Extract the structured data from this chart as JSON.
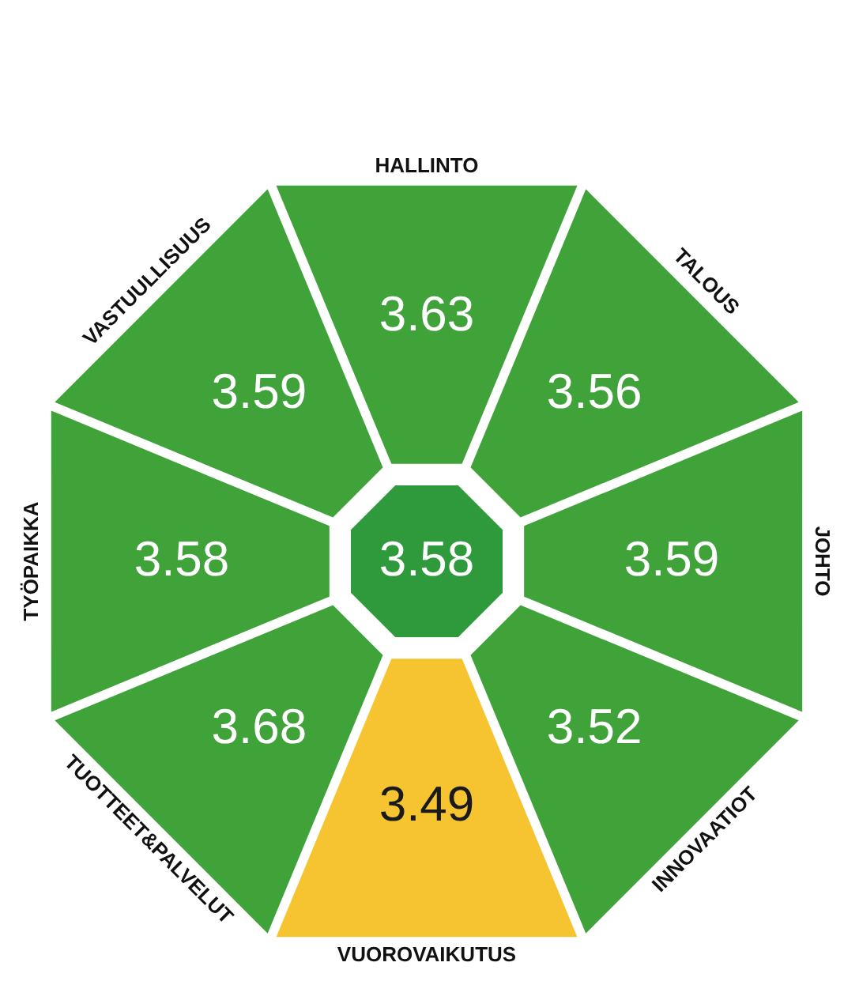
{
  "chart_data": {
    "type": "other",
    "categories": [
      "HALLINTO",
      "TALOUS",
      "JOHTO",
      "INNOVAATIOT",
      "VUOROVAIKUTUS",
      "TUOTTEET&PALVELUT",
      "TYÖPAIKKA",
      "VASTUULLISUUS"
    ],
    "values": [
      3.63,
      3.56,
      3.59,
      3.52,
      3.49,
      3.68,
      3.58,
      3.59
    ],
    "colors": [
      "#3fa33a",
      "#3fa33a",
      "#3fa33a",
      "#3fa33a",
      "#f6c431",
      "#3fa33a",
      "#3fa33a",
      "#3fa33a"
    ],
    "annotations": [
      "3.58"
    ],
    "data_labels": true
  }
}
